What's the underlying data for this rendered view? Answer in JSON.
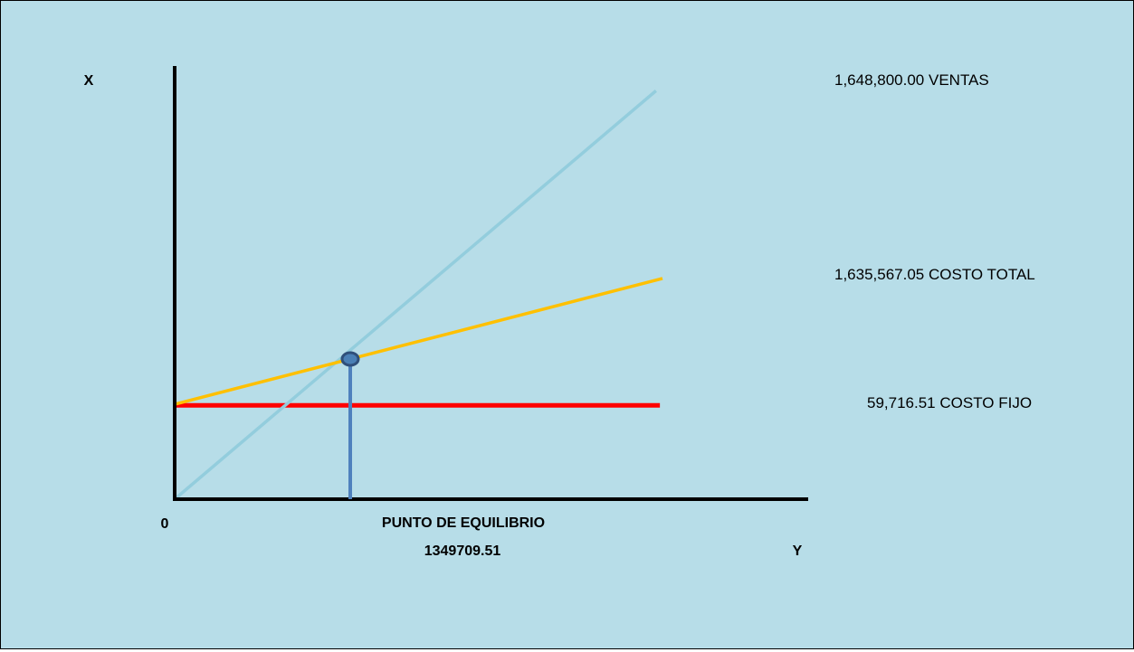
{
  "chart_data": {
    "type": "line",
    "axis_top_label": "X",
    "axis_right_label": "Y",
    "origin_label": "0",
    "equilibrium": {
      "label": "PUNTO DE EQUILIBRIO",
      "value_label": "1349709.51",
      "x": 1349709.51
    },
    "x_range": [
      0,
      4870000
    ],
    "y_range": [
      0,
      2100000
    ],
    "series": [
      {
        "key": "ventas",
        "label": "1,648,800.00 VENTAS",
        "color": "#93cddd",
        "points": [
          [
            0,
            0
          ],
          [
            3700000,
            1980000
          ]
        ]
      },
      {
        "key": "costo_total",
        "label": "1,635,567.05 COSTO TOTAL",
        "color": "#ffc000",
        "points": [
          [
            0,
            460000
          ],
          [
            3750000,
            1070000
          ]
        ]
      },
      {
        "key": "costo_fijo",
        "label": "59,716.51 COSTO FIJO",
        "color": "#ff0000",
        "points": [
          [
            0,
            455000
          ],
          [
            3730000,
            455000
          ]
        ]
      }
    ],
    "marker_color": "#4f81bd",
    "axis_color": "#000000"
  }
}
